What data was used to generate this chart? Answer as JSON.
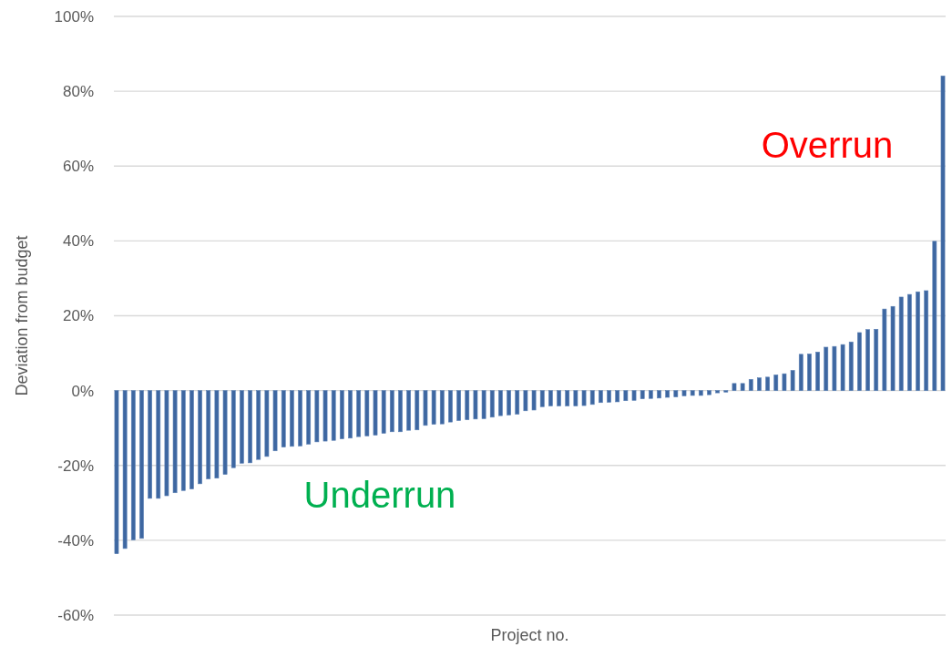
{
  "chart_data": {
    "type": "bar",
    "xlabel": "Project no.",
    "ylabel": "Deviation from budget",
    "annotations": [
      "Overrun",
      "Underrun"
    ],
    "categories": [
      null,
      null,
      null,
      null,
      null,
      null,
      null,
      null,
      null,
      null,
      null,
      null,
      null,
      null,
      null,
      null,
      null,
      null,
      null,
      null,
      null,
      null,
      null,
      null,
      null,
      null,
      null,
      null,
      null,
      null,
      null,
      null,
      null,
      null,
      null,
      null,
      null,
      null,
      null,
      null,
      null,
      null,
      null,
      null,
      null,
      null,
      null,
      null,
      null,
      null,
      null,
      null,
      null,
      null,
      null,
      null,
      null,
      null,
      null,
      null,
      null,
      null,
      null,
      null,
      null,
      null,
      null,
      null,
      null,
      null,
      null,
      null,
      null,
      null,
      null,
      null,
      null,
      null,
      null,
      null,
      null,
      null,
      null,
      null,
      null,
      null,
      null,
      null,
      null,
      null,
      null,
      null,
      null,
      null,
      null,
      null,
      null,
      null,
      null,
      null
    ],
    "values": [
      -43.6,
      -42.2,
      -39.9,
      -39.5,
      -28.8,
      -28.8,
      -28.1,
      -27.3,
      -26.7,
      -26.3,
      -24.9,
      -23.6,
      -23.4,
      -22.4,
      -20.6,
      -19.4,
      -19.3,
      -18.4,
      -17.6,
      -16.1,
      -15.1,
      -14.9,
      -14.8,
      -14.3,
      -13.7,
      -13.5,
      -13.3,
      -12.9,
      -12.7,
      -12.3,
      -12.1,
      -11.9,
      -11.4,
      -11.0,
      -11.0,
      -10.6,
      -10.5,
      -9.3,
      -9.0,
      -8.9,
      -8.4,
      -8.0,
      -7.8,
      -7.6,
      -7.5,
      -7.1,
      -6.7,
      -6.5,
      -6.3,
      -5.4,
      -5.2,
      -4.3,
      -4.1,
      -4.1,
      -4.1,
      -4.1,
      -4.0,
      -3.7,
      -3.2,
      -3.1,
      -3.0,
      -2.7,
      -2.6,
      -2.2,
      -2.1,
      -2.0,
      -1.8,
      -1.7,
      -1.4,
      -1.3,
      -1.3,
      -1.1,
      -0.6,
      -0.4,
      1.9,
      1.9,
      3.0,
      3.4,
      3.6,
      4.2,
      4.5,
      5.4,
      9.7,
      9.8,
      10.3,
      11.6,
      11.8,
      12.3,
      13.0,
      15.5,
      16.3,
      16.4,
      21.8,
      22.5,
      25.0,
      25.7,
      26.4,
      26.7,
      39.9,
      84.1
    ],
    "color": "#3e67a1",
    "ylim": [
      -60,
      100
    ],
    "yticks": [
      {
        "value": -60,
        "label": "-60%"
      },
      {
        "value": -40,
        "label": "-40%"
      },
      {
        "value": -20,
        "label": "-20%"
      },
      {
        "value": 0,
        "label": "0%"
      },
      {
        "value": 20,
        "label": "20%"
      },
      {
        "value": 40,
        "label": "40%"
      },
      {
        "value": 60,
        "label": "60%"
      },
      {
        "value": 80,
        "label": "80%"
      },
      {
        "value": 100,
        "label": "100%"
      }
    ],
    "grid": "y"
  }
}
